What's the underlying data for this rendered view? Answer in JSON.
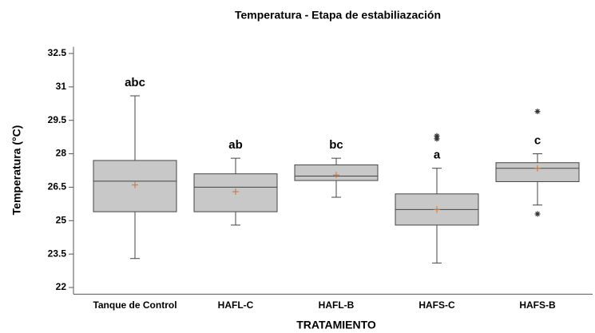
{
  "chart_data": {
    "type": "box",
    "title": "Temperatura - Etapa de estabiliazación",
    "x_label": "TRATAMIENTO",
    "y_label": "Temperatura (°C)",
    "categories": [
      "Tanque de Control",
      "HAFL-C",
      "HAFL-B",
      "HAFS-C",
      "HAFS-B"
    ],
    "whisker_low": [
      23.3,
      24.8,
      26.05,
      23.1,
      25.7
    ],
    "q1": [
      25.4,
      25.4,
      26.8,
      24.8,
      26.75
    ],
    "median": [
      26.77,
      26.5,
      27.0,
      25.5,
      27.35
    ],
    "q3": [
      27.7,
      27.1,
      27.5,
      26.2,
      27.6
    ],
    "whisker_high": [
      30.6,
      27.8,
      27.8,
      27.35,
      28.0
    ],
    "mean": [
      26.6,
      26.3,
      27.05,
      25.5,
      27.35
    ],
    "outliers": [
      [],
      [],
      [],
      [
        28.8,
        28.67
      ],
      [
        29.9,
        25.3
      ]
    ],
    "annotations": [
      "abc",
      "ab",
      "bc",
      "a",
      "c"
    ],
    "color": "#c8c8c8",
    "mean_color": "#c8743a",
    "ylim": [
      21.7,
      32.8
    ],
    "yticks": [
      22,
      23.5,
      25,
      26.5,
      28,
      29.5,
      31,
      32.5
    ]
  }
}
